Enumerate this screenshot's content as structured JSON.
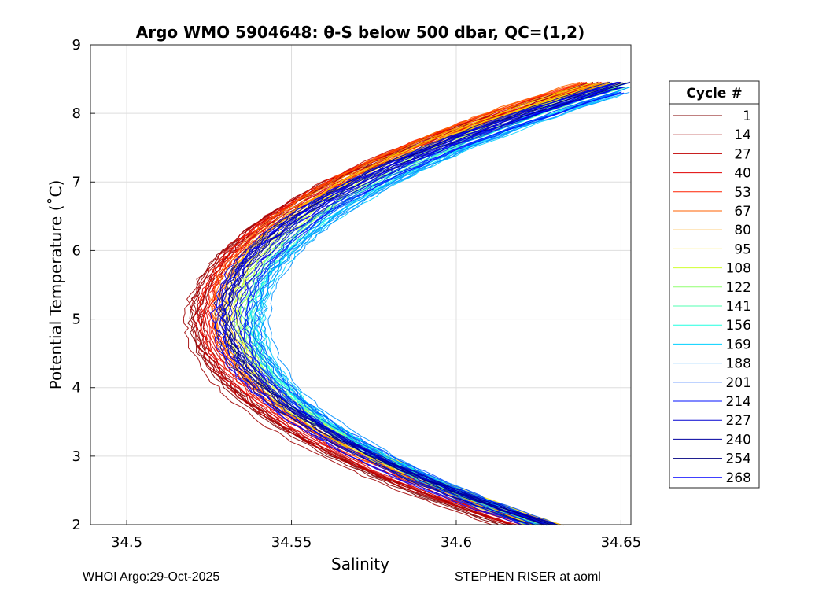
{
  "chart_data": {
    "type": "line",
    "title": "Argo WMO 5904648: θ-S below 500 dbar,  QC=(1,2)",
    "xlabel": "Salinity",
    "ylabel": "Potential Temperature (˚C)",
    "xlim": [
      34.489,
      34.653
    ],
    "ylim": [
      2,
      9
    ],
    "xticks": [
      34.5,
      34.55,
      34.6,
      34.65
    ],
    "xtick_labels": [
      "34.5",
      "34.55",
      "34.6",
      "34.65"
    ],
    "yticks": [
      2,
      3,
      4,
      5,
      6,
      7,
      8,
      9
    ],
    "ytick_labels": [
      "2",
      "3",
      "4",
      "5",
      "6",
      "7",
      "8",
      "9"
    ],
    "grid": true,
    "legend_title": "Cycle #",
    "legend_position": "right",
    "profile_model": "salinity = s_min + a * (theta - t_min)^2, per cycle",
    "theta_range": [
      2.0,
      8.45
    ],
    "series": [
      {
        "name": "1",
        "color": "#800000",
        "s_min": 34.521,
        "t_min": 5.0,
        "a": 0.0104
      },
      {
        "name": "14",
        "color": "#a00000",
        "s_min": 34.52,
        "t_min": 5.0,
        "a": 0.0105
      },
      {
        "name": "27",
        "color": "#c00000",
        "s_min": 34.522,
        "t_min": 5.05,
        "a": 0.0104
      },
      {
        "name": "40",
        "color": "#e00000",
        "s_min": 34.524,
        "t_min": 5.05,
        "a": 0.0103
      },
      {
        "name": "53",
        "color": "#ff2000",
        "s_min": 34.525,
        "t_min": 5.1,
        "a": 0.0103
      },
      {
        "name": "67",
        "color": "#ff6000",
        "s_min": 34.527,
        "t_min": 5.1,
        "a": 0.0102
      },
      {
        "name": "80",
        "color": "#ffa000",
        "s_min": 34.529,
        "t_min": 5.1,
        "a": 0.0102
      },
      {
        "name": "95",
        "color": "#ffe000",
        "s_min": 34.531,
        "t_min": 5.1,
        "a": 0.0101
      },
      {
        "name": "108",
        "color": "#d0ff30",
        "s_min": 34.533,
        "t_min": 5.05,
        "a": 0.0101
      },
      {
        "name": "122",
        "color": "#90ff70",
        "s_min": 34.535,
        "t_min": 5.0,
        "a": 0.01
      },
      {
        "name": "141",
        "color": "#50ffb0",
        "s_min": 34.537,
        "t_min": 5.0,
        "a": 0.0099
      },
      {
        "name": "156",
        "color": "#20ffe0",
        "s_min": 34.539,
        "t_min": 5.0,
        "a": 0.0098
      },
      {
        "name": "169",
        "color": "#00d0ff",
        "s_min": 34.54,
        "t_min": 4.95,
        "a": 0.0098
      },
      {
        "name": "188",
        "color": "#0090ff",
        "s_min": 34.541,
        "t_min": 4.95,
        "a": 0.0097
      },
      {
        "name": "201",
        "color": "#0050ff",
        "s_min": 34.538,
        "t_min": 5.0,
        "a": 0.01
      },
      {
        "name": "214",
        "color": "#0010ff",
        "s_min": 34.535,
        "t_min": 5.0,
        "a": 0.0102
      },
      {
        "name": "227",
        "color": "#0000d0",
        "s_min": 34.532,
        "t_min": 5.05,
        "a": 0.0104
      },
      {
        "name": "240",
        "color": "#0000a0",
        "s_min": 34.53,
        "t_min": 5.05,
        "a": 0.0104
      },
      {
        "name": "254",
        "color": "#000080",
        "s_min": 34.529,
        "t_min": 5.05,
        "a": 0.0105
      },
      {
        "name": "268",
        "color": "#0000ff",
        "s_min": 34.528,
        "t_min": 5.0,
        "a": 0.0104
      }
    ]
  },
  "footer": {
    "left": "WHOI Argo:29-Oct-2025",
    "right": "STEPHEN RISER at aoml"
  }
}
